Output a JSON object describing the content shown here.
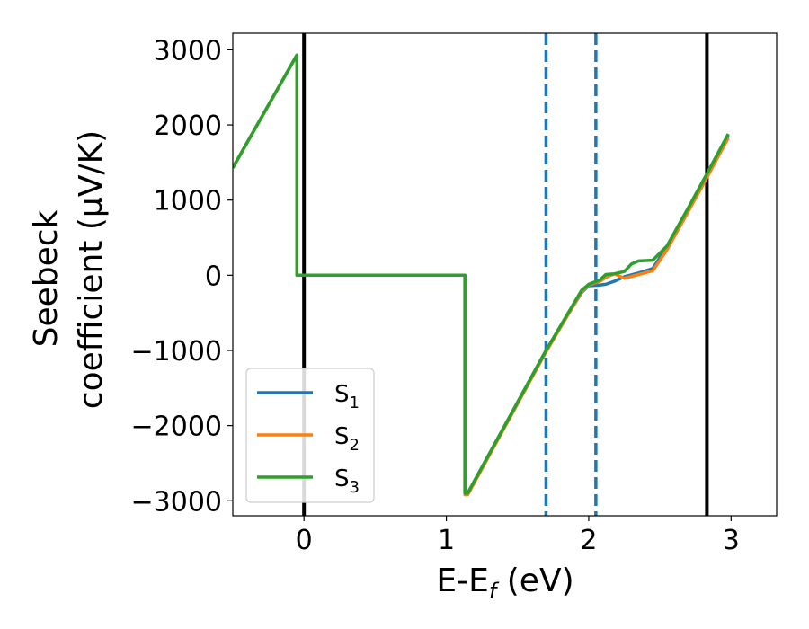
{
  "chart_data": {
    "type": "line",
    "xlabel": "E-E",
    "xlabel_sub": "f",
    "xlabel_unit": " (eV)",
    "ylabel_line1": "Seebeck",
    "ylabel_line2": "coefficient  (μV/K)",
    "xlim": [
      -0.5,
      3.32
    ],
    "ylim": [
      -3200,
      3220
    ],
    "x_ticks": [
      0,
      1,
      2,
      3
    ],
    "x_tick_labels": [
      "0",
      "1",
      "2",
      "3"
    ],
    "y_ticks": [
      -3000,
      -2000,
      -1000,
      0,
      1000,
      2000,
      3000
    ],
    "y_tick_labels": [
      "−3000",
      "−2000",
      "−1000",
      "0",
      "1000",
      "2000",
      "3000"
    ],
    "grid": false,
    "legend_position": "lower-left",
    "vlines": [
      {
        "x": 0,
        "style": "solid",
        "color": "#000000"
      },
      {
        "x": 1.7,
        "style": "dashed",
        "color": "#1f77b4"
      },
      {
        "x": 2.05,
        "style": "dashed",
        "color": "#1f77b4"
      },
      {
        "x": 2.83,
        "style": "solid",
        "color": "#000000"
      }
    ],
    "series": [
      {
        "name": "S",
        "name_sub": "1",
        "color": "#1f77b4",
        "x": [
          -0.5,
          -0.05,
          -0.05,
          1.13,
          1.13,
          1.15,
          1.7,
          1.95,
          2.0,
          2.08,
          2.12,
          2.18,
          2.25,
          2.35,
          2.45,
          2.55,
          2.7,
          2.83,
          2.98
        ],
        "y": [
          1430,
          2930,
          0,
          0,
          -2900,
          -2900,
          -1000,
          -230,
          -140,
          -130,
          -120,
          -80,
          -20,
          30,
          90,
          380,
          880,
          1330,
          1860
        ]
      },
      {
        "name": "S",
        "name_sub": "2",
        "color": "#ff7f0e",
        "x": [
          -0.5,
          -0.05,
          -0.05,
          1.13,
          1.13,
          1.15,
          1.7,
          1.95,
          2.0,
          2.08,
          2.12,
          2.18,
          2.25,
          2.35,
          2.45,
          2.55,
          2.7,
          2.83,
          2.98
        ],
        "y": [
          1430,
          2930,
          0,
          0,
          -2920,
          -2920,
          -1020,
          -220,
          -130,
          -80,
          -30,
          20,
          -40,
          10,
          60,
          340,
          850,
          1300,
          1830
        ]
      },
      {
        "name": "S",
        "name_sub": "3",
        "color": "#2ca02c",
        "x": [
          -0.5,
          -0.05,
          -0.05,
          1.13,
          1.13,
          1.15,
          1.7,
          1.95,
          2.0,
          2.08,
          2.12,
          2.18,
          2.25,
          2.3,
          2.35,
          2.45,
          2.55,
          2.7,
          2.83,
          2.98
        ],
        "y": [
          1430,
          2930,
          0,
          0,
          -2900,
          -2900,
          -1000,
          -200,
          -120,
          -60,
          10,
          20,
          50,
          150,
          190,
          200,
          390,
          900,
          1350,
          1880
        ]
      }
    ]
  }
}
